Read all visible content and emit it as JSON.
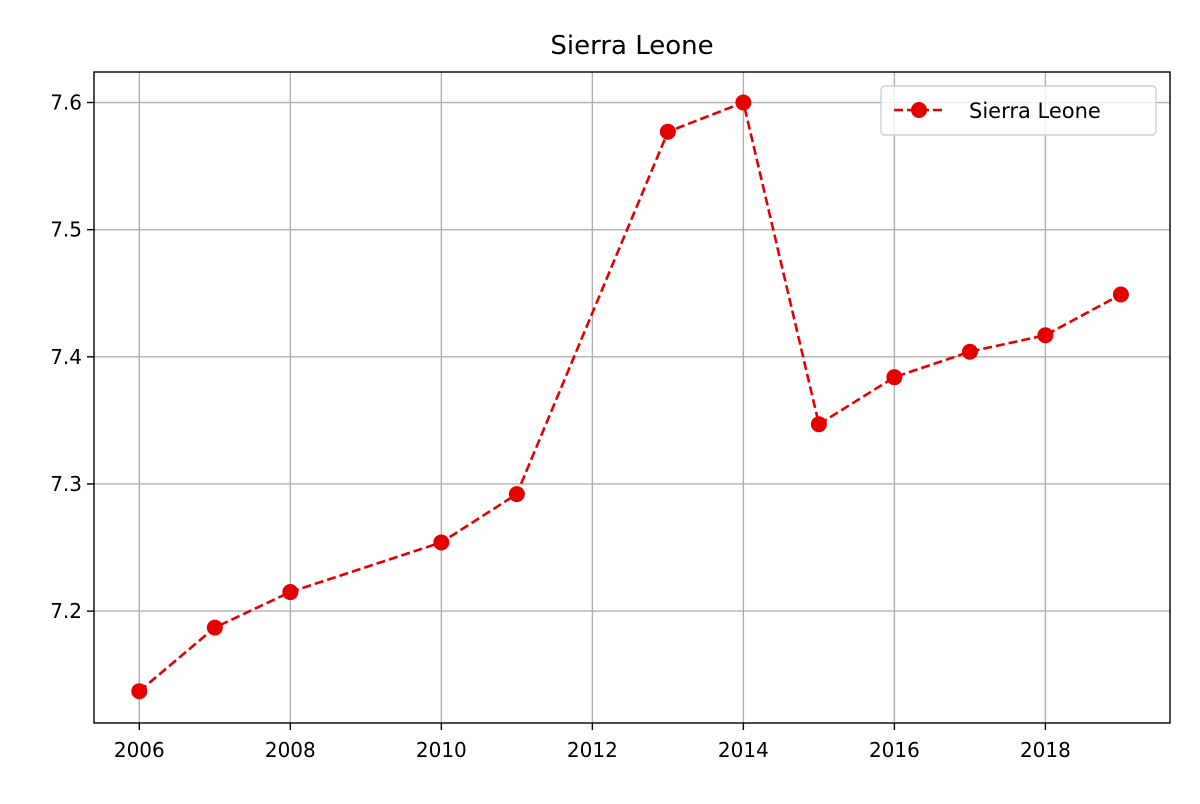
{
  "chart_data": {
    "type": "line",
    "title": "Sierra Leone",
    "xlabel": "",
    "ylabel": "",
    "xlim": [
      2005.4,
      2019.65
    ],
    "ylim": [
      7.112,
      7.624
    ],
    "xticks": [
      2006,
      2008,
      2010,
      2012,
      2014,
      2016,
      2018
    ],
    "xtick_labels": [
      "2006",
      "2008",
      "2010",
      "2012",
      "2014",
      "2016",
      "2018"
    ],
    "yticks": [
      7.2,
      7.3,
      7.4,
      7.5,
      7.6
    ],
    "ytick_labels": [
      "7.2",
      "7.3",
      "7.4",
      "7.5",
      "7.6"
    ],
    "grid": true,
    "legend_position": "top-right",
    "series": [
      {
        "name": "Sierra Leone",
        "color": "#e50000",
        "line_style": "dashed",
        "marker": "circle",
        "x": [
          2006,
          2007,
          2008,
          2010,
          2011,
          2013,
          2014,
          2015,
          2016,
          2017,
          2018,
          2019
        ],
        "y": [
          7.137,
          7.187,
          7.215,
          7.254,
          7.292,
          7.577,
          7.6,
          7.347,
          7.384,
          7.404,
          7.417,
          7.449
        ]
      }
    ]
  }
}
